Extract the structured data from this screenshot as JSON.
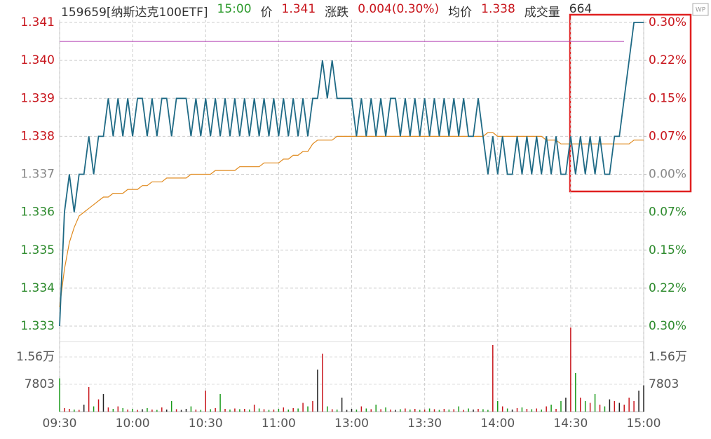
{
  "chart_data": {
    "type": "line",
    "info": [
      {
        "text": "159659[纳斯达克100ETF]",
        "color": "#333333"
      },
      {
        "text": "15:00",
        "color": "#2e9b2e"
      },
      {
        "text": "价",
        "color": "#333333"
      },
      {
        "text": "1.341",
        "color": "#c8161d"
      },
      {
        "text": "涨跌",
        "color": "#333333"
      },
      {
        "text": "0.004(0.30%)",
        "color": "#c8161d"
      },
      {
        "text": "均价",
        "color": "#333333"
      },
      {
        "text": "1.338",
        "color": "#c8161d"
      },
      {
        "text": "成交量",
        "color": "#333333"
      },
      {
        "text": "664",
        "color": "#333333"
      }
    ],
    "categories": [
      "09:30",
      null,
      null,
      null,
      null,
      null,
      null,
      null,
      null,
      null,
      null,
      null,
      null,
      null,
      null,
      "10:00",
      null,
      null,
      null,
      null,
      null,
      null,
      null,
      null,
      null,
      null,
      null,
      null,
      null,
      null,
      "10:30",
      null,
      null,
      null,
      null,
      null,
      null,
      null,
      null,
      null,
      null,
      null,
      null,
      null,
      null,
      "11:00",
      null,
      null,
      null,
      null,
      null,
      null,
      null,
      null,
      null,
      null,
      null,
      null,
      null,
      null,
      "13:00",
      null,
      null,
      null,
      null,
      null,
      null,
      null,
      null,
      null,
      null,
      null,
      null,
      null,
      null,
      "13:30",
      null,
      null,
      null,
      null,
      null,
      null,
      null,
      null,
      null,
      null,
      null,
      null,
      null,
      null,
      "14:00",
      null,
      null,
      null,
      null,
      null,
      null,
      null,
      null,
      null,
      null,
      null,
      null,
      null,
      null,
      "14:30",
      null,
      null,
      null,
      null,
      null,
      null,
      null,
      null,
      null,
      null,
      null,
      null,
      null,
      null,
      "15:00"
    ],
    "series": [
      {
        "name": "价格",
        "color": "#1f6a85",
        "values": [
          1.333,
          1.336,
          1.337,
          1.336,
          1.337,
          1.337,
          1.338,
          1.337,
          1.338,
          1.338,
          1.339,
          1.338,
          1.339,
          1.338,
          1.339,
          1.338,
          1.339,
          1.339,
          1.338,
          1.339,
          1.338,
          1.339,
          1.339,
          1.338,
          1.339,
          1.339,
          1.339,
          1.338,
          1.339,
          1.338,
          1.339,
          1.338,
          1.339,
          1.338,
          1.339,
          1.338,
          1.339,
          1.338,
          1.339,
          1.338,
          1.339,
          1.338,
          1.339,
          1.338,
          1.339,
          1.338,
          1.339,
          1.338,
          1.339,
          1.338,
          1.339,
          1.338,
          1.339,
          1.339,
          1.34,
          1.339,
          1.34,
          1.339,
          1.339,
          1.339,
          1.339,
          1.338,
          1.339,
          1.338,
          1.339,
          1.338,
          1.339,
          1.338,
          1.339,
          1.339,
          1.338,
          1.339,
          1.338,
          1.339,
          1.338,
          1.339,
          1.338,
          1.339,
          1.338,
          1.339,
          1.338,
          1.339,
          1.338,
          1.339,
          1.338,
          1.338,
          1.339,
          1.338,
          1.337,
          1.338,
          1.337,
          1.338,
          1.337,
          1.337,
          1.338,
          1.337,
          1.338,
          1.337,
          1.338,
          1.337,
          1.338,
          1.337,
          1.338,
          1.337,
          1.337,
          1.338,
          1.337,
          1.338,
          1.337,
          1.338,
          1.337,
          1.338,
          1.337,
          1.337,
          1.338,
          1.338,
          1.339,
          1.34,
          1.341,
          1.341,
          1.341
        ]
      },
      {
        "name": "均价",
        "color": "#e08a1e",
        "values": [
          1.3335,
          1.3345,
          1.3352,
          1.3356,
          1.3359,
          1.336,
          1.3361,
          1.3362,
          1.3363,
          1.3364,
          1.3364,
          1.3365,
          1.3365,
          1.3365,
          1.3366,
          1.3366,
          1.3366,
          1.3367,
          1.3367,
          1.3368,
          1.3368,
          1.3368,
          1.3369,
          1.3369,
          1.3369,
          1.3369,
          1.3369,
          1.337,
          1.337,
          1.337,
          1.337,
          1.337,
          1.3371,
          1.3371,
          1.3371,
          1.3371,
          1.3371,
          1.3372,
          1.3372,
          1.3372,
          1.3372,
          1.3372,
          1.3373,
          1.3373,
          1.3373,
          1.3373,
          1.3374,
          1.3374,
          1.3375,
          1.3375,
          1.3376,
          1.3376,
          1.3378,
          1.3379,
          1.3379,
          1.3379,
          1.3379,
          1.338,
          1.338,
          1.338,
          1.338,
          1.338,
          1.338,
          1.338,
          1.338,
          1.338,
          1.338,
          1.338,
          1.338,
          1.338,
          1.338,
          1.338,
          1.338,
          1.338,
          1.338,
          1.338,
          1.338,
          1.338,
          1.338,
          1.338,
          1.338,
          1.338,
          1.338,
          1.338,
          1.338,
          1.338,
          1.338,
          1.338,
          1.3381,
          1.3381,
          1.338,
          1.338,
          1.338,
          1.338,
          1.338,
          1.338,
          1.338,
          1.338,
          1.338,
          1.338,
          1.3379,
          1.3379,
          1.3379,
          1.3378,
          1.3378,
          1.3378,
          1.3378,
          1.3378,
          1.3378,
          1.3378,
          1.3378,
          1.3378,
          1.3378,
          1.3378,
          1.3378,
          1.3378,
          1.3378,
          1.3378,
          1.3379,
          1.3379,
          1.3379
        ]
      }
    ],
    "prev_close": 1.337,
    "hline": {
      "value": 1.3405,
      "color": "#b03cb0"
    },
    "ylim": [
      1.333,
      1.341
    ],
    "yticks": [
      1.333,
      1.334,
      1.335,
      1.336,
      1.337,
      1.338,
      1.339,
      {
        "value": 1.34,
        "label": "1.340"
      },
      1.341
    ],
    "y2lim": [
      -0.2992,
      0.2992
    ],
    "y2ticks": [
      {
        "value": -0.2992,
        "label": "0.30%"
      },
      {
        "value": -0.2244,
        "label": "0.22%"
      },
      {
        "value": -0.1496,
        "label": "0.15%"
      },
      {
        "value": -0.0748,
        "label": "0.07%"
      },
      {
        "value": 0,
        "label": "0.00%"
      },
      {
        "value": 0.0748,
        "label": "0.07%"
      },
      {
        "value": 0.1496,
        "label": "0.15%"
      },
      {
        "value": 0.2244,
        "label": "0.22%"
      },
      {
        "value": 0.2992,
        "label": "0.30%"
      }
    ],
    "colors": {
      "up": "#c8161d",
      "down": "#2e8b2e",
      "flat": "#888888"
    },
    "volume": {
      "values": [
        9500,
        1000,
        800,
        600,
        500,
        2000,
        7000,
        1500,
        3500,
        5000,
        1200,
        800,
        1500,
        1000,
        600,
        800,
        500,
        700,
        1000,
        600,
        500,
        1200,
        600,
        3000,
        700,
        500,
        800,
        1500,
        600,
        500,
        6000,
        700,
        1000,
        5000,
        800,
        600,
        900,
        700,
        800,
        600,
        2000,
        900,
        700,
        500,
        600,
        800,
        1200,
        600,
        1000,
        900,
        2500,
        1500,
        3000,
        12000,
        16500,
        1500,
        700,
        600,
        4000,
        500,
        800,
        600,
        1500,
        900,
        700,
        2000,
        700,
        1200,
        600,
        500,
        700,
        900,
        600,
        800,
        500,
        600,
        900,
        700,
        500,
        800,
        600,
        700,
        1500,
        500,
        900,
        600,
        800,
        700,
        500,
        19000,
        3000,
        1500,
        900,
        600,
        1000,
        1200,
        800,
        700,
        900,
        600,
        1500,
        2000,
        800,
        3000,
        4000,
        24000,
        11000,
        4000,
        3000,
        2500,
        5000,
        2000,
        1500,
        3500,
        3000,
        2500,
        2000,
        4000,
        3000,
        6000,
        7500
      ],
      "ylim": [
        0,
        24400
      ],
      "yticks": [
        7803,
        {
          "value": 15606,
          "label": "1.56万"
        }
      ],
      "colors": {
        "up": "#c8161d",
        "down": "#1a9a1a",
        "flat": "#222222"
      }
    }
  }
}
